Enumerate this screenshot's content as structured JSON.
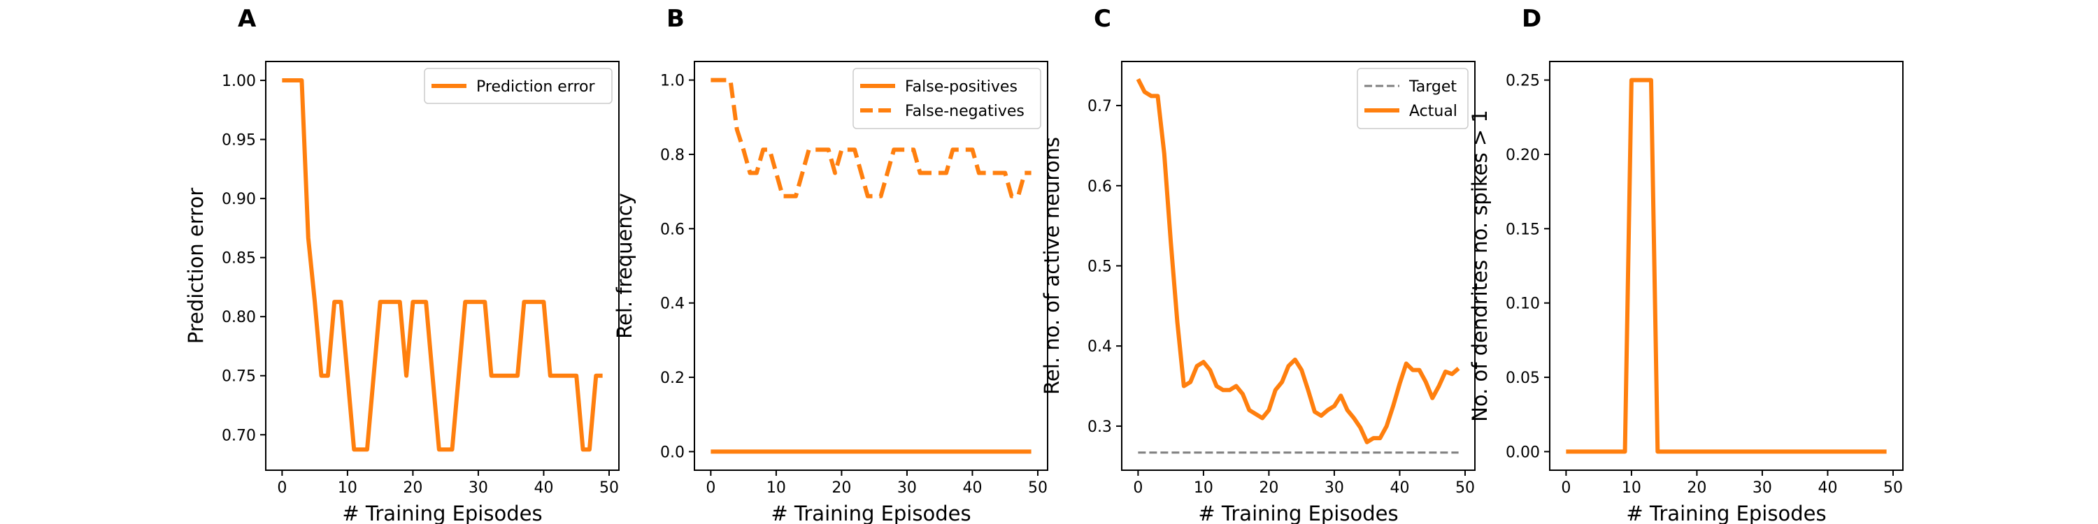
{
  "colors": {
    "orange": "#ff7f0e",
    "target": "#7f7f7f",
    "axis": "#000000",
    "legend_border": "#cccccc"
  },
  "chart_data": [
    {
      "type": "line",
      "panel_label": "A",
      "xlabel": "# Training Episodes",
      "ylabel": "Prediction error",
      "xlim": [
        -2.5,
        51.5
      ],
      "ylim": [
        0.67,
        1.016
      ],
      "xticks": [
        0,
        10,
        20,
        30,
        40,
        50
      ],
      "yticks": [
        0.7,
        0.75,
        0.8,
        0.85,
        0.9,
        0.95,
        1.0
      ],
      "ytick_labels": [
        "0.70",
        "0.75",
        "0.80",
        "0.85",
        "0.90",
        "0.95",
        "1.00"
      ],
      "legend_position": "upper right",
      "series": [
        {
          "name": "Prediction error",
          "style": "solid",
          "color": "#ff7f0e",
          "x": [
            0,
            1,
            2,
            3,
            4,
            5,
            6,
            7,
            8,
            9,
            10,
            11,
            12,
            13,
            14,
            15,
            16,
            17,
            18,
            19,
            20,
            21,
            22,
            23,
            24,
            25,
            26,
            27,
            28,
            29,
            30,
            31,
            32,
            33,
            34,
            35,
            36,
            37,
            38,
            39,
            40,
            41,
            42,
            43,
            44,
            45,
            46,
            47,
            48,
            49
          ],
          "y": [
            1.0,
            1.0,
            1.0,
            1.0,
            0.8667,
            0.8125,
            0.75,
            0.75,
            0.8125,
            0.8125,
            0.75,
            0.6875,
            0.6875,
            0.6875,
            0.75,
            0.8125,
            0.8125,
            0.8125,
            0.8125,
            0.75,
            0.8125,
            0.8125,
            0.8125,
            0.75,
            0.6875,
            0.6875,
            0.6875,
            0.75,
            0.8125,
            0.8125,
            0.8125,
            0.8125,
            0.75,
            0.75,
            0.75,
            0.75,
            0.75,
            0.8125,
            0.8125,
            0.8125,
            0.8125,
            0.75,
            0.75,
            0.75,
            0.75,
            0.75,
            0.6875,
            0.6875,
            0.75,
            0.75
          ]
        }
      ]
    },
    {
      "type": "line",
      "panel_label": "B",
      "xlabel": "# Training Episodes",
      "ylabel": "Rel. frequency",
      "xlim": [
        -2.5,
        51.5
      ],
      "ylim": [
        -0.05,
        1.05
      ],
      "xticks": [
        0,
        10,
        20,
        30,
        40,
        50
      ],
      "yticks": [
        0.0,
        0.2,
        0.4,
        0.6,
        0.8,
        1.0
      ],
      "ytick_labels": [
        "0.0",
        "0.2",
        "0.4",
        "0.6",
        "0.8",
        "1.0"
      ],
      "legend_position": "upper right",
      "series": [
        {
          "name": "False-positives",
          "style": "solid",
          "color": "#ff7f0e",
          "x": [
            0,
            49
          ],
          "y": [
            0.0,
            0.0
          ]
        },
        {
          "name": "False-negatives",
          "style": "dashed",
          "color": "#ff7f0e",
          "x": [
            0,
            1,
            2,
            3,
            4,
            5,
            6,
            7,
            8,
            9,
            10,
            11,
            12,
            13,
            14,
            15,
            16,
            17,
            18,
            19,
            20,
            21,
            22,
            23,
            24,
            25,
            26,
            27,
            28,
            29,
            30,
            31,
            32,
            33,
            34,
            35,
            36,
            37,
            38,
            39,
            40,
            41,
            42,
            43,
            44,
            45,
            46,
            47,
            48,
            49
          ],
          "y": [
            1.0,
            1.0,
            1.0,
            1.0,
            0.8667,
            0.8125,
            0.75,
            0.75,
            0.8125,
            0.8125,
            0.75,
            0.6875,
            0.6875,
            0.6875,
            0.75,
            0.8125,
            0.8125,
            0.8125,
            0.8125,
            0.75,
            0.8125,
            0.8125,
            0.8125,
            0.75,
            0.6875,
            0.6875,
            0.6875,
            0.75,
            0.8125,
            0.8125,
            0.8125,
            0.8125,
            0.75,
            0.75,
            0.75,
            0.75,
            0.75,
            0.8125,
            0.8125,
            0.8125,
            0.8125,
            0.75,
            0.75,
            0.75,
            0.75,
            0.75,
            0.6875,
            0.6875,
            0.75,
            0.75
          ]
        }
      ]
    },
    {
      "type": "line",
      "panel_label": "C",
      "xlabel": "# Training Episodes",
      "ylabel": "Rel. no. of active neurons",
      "xlim": [
        -2.5,
        51.5
      ],
      "ylim": [
        0.245,
        0.755
      ],
      "xticks": [
        0,
        10,
        20,
        30,
        40,
        50
      ],
      "yticks": [
        0.3,
        0.4,
        0.5,
        0.6,
        0.7
      ],
      "ytick_labels": [
        "0.3",
        "0.4",
        "0.5",
        "0.6",
        "0.7"
      ],
      "legend_position": "upper right",
      "series": [
        {
          "name": "Target",
          "style": "dashed",
          "color": "#7f7f7f",
          "x": [
            0,
            49
          ],
          "y": [
            0.267,
            0.267
          ]
        },
        {
          "name": "Actual",
          "style": "solid",
          "color": "#ff7f0e",
          "x": [
            0,
            1,
            2,
            3,
            4,
            5,
            6,
            7,
            8,
            9,
            10,
            11,
            12,
            13,
            14,
            15,
            16,
            17,
            18,
            19,
            20,
            21,
            22,
            23,
            24,
            25,
            26,
            27,
            28,
            29,
            30,
            31,
            32,
            33,
            34,
            35,
            36,
            37,
            38,
            39,
            40,
            41,
            42,
            43,
            44,
            45,
            46,
            47,
            48,
            49
          ],
          "y": [
            0.733,
            0.717,
            0.712,
            0.712,
            0.64,
            0.53,
            0.43,
            0.35,
            0.355,
            0.375,
            0.38,
            0.37,
            0.35,
            0.345,
            0.345,
            0.35,
            0.34,
            0.32,
            0.315,
            0.31,
            0.32,
            0.345,
            0.355,
            0.375,
            0.383,
            0.37,
            0.345,
            0.318,
            0.313,
            0.32,
            0.325,
            0.338,
            0.32,
            0.31,
            0.298,
            0.28,
            0.285,
            0.285,
            0.3,
            0.325,
            0.353,
            0.378,
            0.37,
            0.37,
            0.355,
            0.335,
            0.35,
            0.368,
            0.365,
            0.372
          ]
        }
      ]
    },
    {
      "type": "line",
      "panel_label": "D",
      "xlabel": "# Training Episodes",
      "ylabel": "No. of dendrites no. spikes > 1",
      "xlim": [
        -2.5,
        51.5
      ],
      "ylim": [
        -0.0125,
        0.2625
      ],
      "xticks": [
        0,
        10,
        20,
        30,
        40,
        50
      ],
      "yticks": [
        0.0,
        0.05,
        0.1,
        0.15,
        0.2,
        0.25
      ],
      "ytick_labels": [
        "0.00",
        "0.05",
        "0.10",
        "0.15",
        "0.20",
        "0.25"
      ],
      "series": [
        {
          "name": "",
          "style": "solid",
          "color": "#ff7f0e",
          "x": [
            0,
            9,
            10,
            11,
            12,
            13,
            14,
            15,
            49
          ],
          "y": [
            0.0,
            0.0,
            0.25,
            0.25,
            0.25,
            0.25,
            0.0,
            0.0,
            0.0
          ]
        }
      ]
    }
  ]
}
